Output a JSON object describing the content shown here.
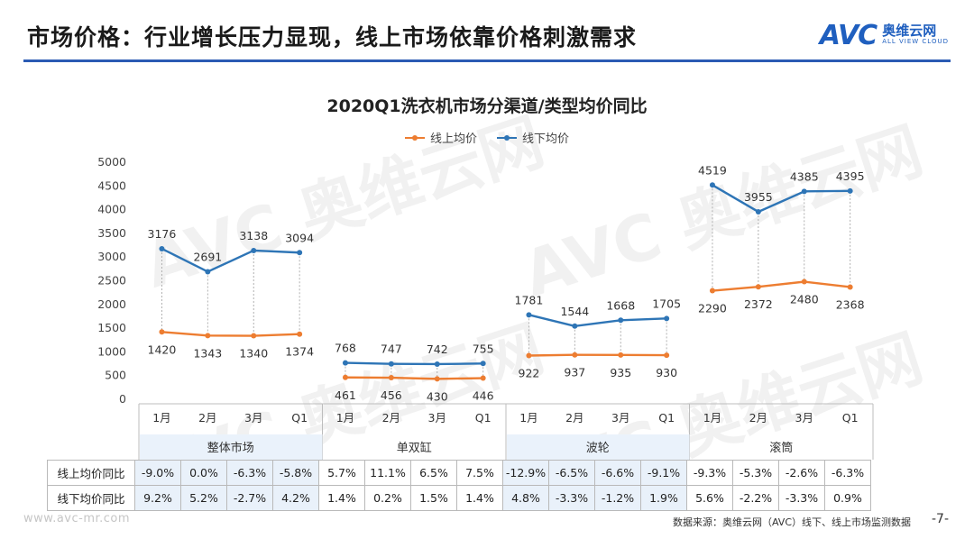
{
  "header": {
    "title": "市场价格：行业增长压力显现，线上市场依靠价格刺激需求",
    "logo_mark": "AVC",
    "logo_cn": "奥维云网",
    "logo_en": "ALL VIEW CLOUD"
  },
  "watermark": {
    "cn": "奥维云网",
    "mark": "AVC"
  },
  "chart_data": {
    "type": "line",
    "title": "2020Q1洗衣机市场分渠道/类型均价同比",
    "legend_position": "top-center",
    "ylim": [
      0,
      5000
    ],
    "yticks": [
      0,
      500,
      1000,
      1500,
      2000,
      2500,
      3000,
      3500,
      4000,
      4500,
      5000
    ],
    "grid": false,
    "period_labels": [
      "1月",
      "2月",
      "3月",
      "Q1"
    ],
    "groups": [
      {
        "name": "整体市场",
        "online": [
          1420,
          1343,
          1340,
          1374
        ],
        "offline": [
          3176,
          2691,
          3138,
          3094
        ]
      },
      {
        "name": "单双缸",
        "online": [
          461,
          456,
          430,
          446
        ],
        "offline": [
          768,
          747,
          742,
          755
        ]
      },
      {
        "name": "波轮",
        "online": [
          922,
          937,
          935,
          930
        ],
        "offline": [
          1781,
          1544,
          1668,
          1705
        ]
      },
      {
        "name": "滚筒",
        "online": [
          2290,
          2372,
          2480,
          2368
        ],
        "offline": [
          4519,
          3955,
          4385,
          4395
        ]
      }
    ],
    "series": [
      {
        "name": "线上均价",
        "key": "online",
        "color": "#ed7d31"
      },
      {
        "name": "线下均价",
        "key": "offline",
        "color": "#2e75b6"
      }
    ]
  },
  "yoy_table": {
    "rows": [
      {
        "label": "线上均价同比",
        "values": [
          "-9.0%",
          "0.0%",
          "-6.3%",
          "-5.8%",
          "5.7%",
          "11.1%",
          "6.5%",
          "7.5%",
          "-12.9%",
          "-6.5%",
          "-6.6%",
          "-9.1%",
          "-9.3%",
          "-5.3%",
          "-2.6%",
          "-6.3%"
        ]
      },
      {
        "label": "线下均价同比",
        "values": [
          "9.2%",
          "5.2%",
          "-2.7%",
          "4.2%",
          "1.4%",
          "0.2%",
          "1.5%",
          "1.4%",
          "4.8%",
          "-3.3%",
          "-1.2%",
          "1.9%",
          "5.6%",
          "-2.2%",
          "-3.3%",
          "0.9%"
        ]
      }
    ],
    "shade_color": "#e9f1fa"
  },
  "footer": {
    "url": "www.avc-mr.com",
    "source": "数据来源：奥维云网（AVC）线下、线上市场监测数据",
    "page": "-7-"
  }
}
